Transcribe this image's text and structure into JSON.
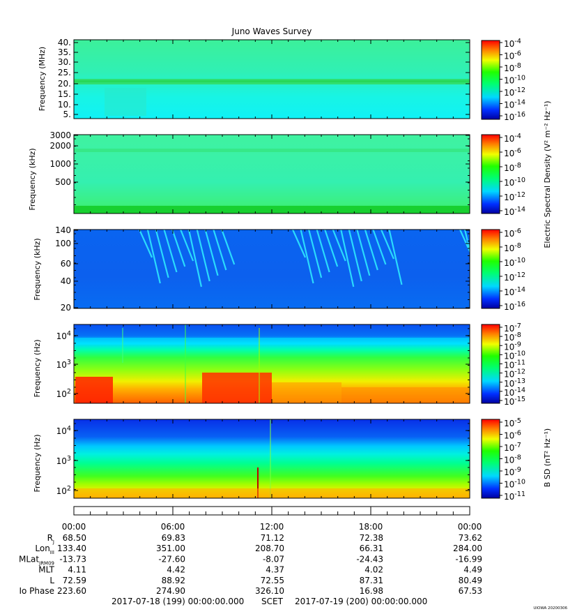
{
  "chart_data": {
    "type": "heatmap",
    "title": "Juno Waves Survey",
    "x_ticks": [
      "00:00",
      "06:00",
      "12:00",
      "18:00",
      "00:00"
    ],
    "panels": [
      {
        "id": "efield-mhz",
        "ylabel": "Frequency (MHz)",
        "y_ticks": [
          "40.",
          "35.",
          "30.",
          "25.",
          "20.",
          "15.",
          "10.",
          "5."
        ],
        "y_scale": "linear",
        "colorbar_ticks": [
          {
            "base": "10",
            "exp": "-4"
          },
          {
            "base": "10",
            "exp": "-6"
          },
          {
            "base": "10",
            "exp": "-8"
          },
          {
            "base": "10",
            "exp": "-10"
          },
          {
            "base": "10",
            "exp": "-12"
          },
          {
            "base": "10",
            "exp": "-14"
          },
          {
            "base": "10",
            "exp": "-16"
          }
        ]
      },
      {
        "id": "efield-khz-high",
        "ylabel": "Frequency (kHz)",
        "y_ticks": [
          "3000",
          "2000",
          "1000",
          "500"
        ],
        "y_scale": "log",
        "colorbar_ticks": [
          {
            "base": "10",
            "exp": "-4"
          },
          {
            "base": "10",
            "exp": "-6"
          },
          {
            "base": "10",
            "exp": "-8"
          },
          {
            "base": "10",
            "exp": "-10"
          },
          {
            "base": "10",
            "exp": "-12"
          },
          {
            "base": "10",
            "exp": "-14"
          }
        ]
      },
      {
        "id": "efield-khz-low",
        "ylabel": "Frequency (kHz)",
        "y_ticks": [
          "140",
          "100",
          "60",
          "40",
          "20"
        ],
        "y_scale": "log",
        "colorbar_ticks": [
          {
            "base": "10",
            "exp": "-6"
          },
          {
            "base": "10",
            "exp": "-8"
          },
          {
            "base": "10",
            "exp": "-10"
          },
          {
            "base": "10",
            "exp": "-12"
          },
          {
            "base": "10",
            "exp": "-14"
          },
          {
            "base": "10",
            "exp": "-16"
          }
        ]
      },
      {
        "id": "efield-hz",
        "ylabel": "Frequency (Hz)",
        "y_ticks": [
          {
            "base": "10",
            "exp": "4"
          },
          {
            "base": "10",
            "exp": "3"
          },
          {
            "base": "10",
            "exp": "2"
          }
        ],
        "y_scale": "log",
        "colorbar_ticks": [
          {
            "base": "10",
            "exp": "-7"
          },
          {
            "base": "10",
            "exp": "-8"
          },
          {
            "base": "10",
            "exp": "-9"
          },
          {
            "base": "10",
            "exp": "-10"
          },
          {
            "base": "10",
            "exp": "-11"
          },
          {
            "base": "10",
            "exp": "-12"
          },
          {
            "base": "10",
            "exp": "-13"
          },
          {
            "base": "10",
            "exp": "-14"
          },
          {
            "base": "10",
            "exp": "-15"
          }
        ]
      },
      {
        "id": "bfield-hz",
        "ylabel": "Frequency (Hz)",
        "y_ticks": [
          {
            "base": "10",
            "exp": "4"
          },
          {
            "base": "10",
            "exp": "3"
          },
          {
            "base": "10",
            "exp": "2"
          }
        ],
        "y_scale": "log",
        "colorbar_ticks": [
          {
            "base": "10",
            "exp": "-5"
          },
          {
            "base": "10",
            "exp": "-6"
          },
          {
            "base": "10",
            "exp": "-7"
          },
          {
            "base": "10",
            "exp": "-8"
          },
          {
            "base": "10",
            "exp": "-9"
          },
          {
            "base": "10",
            "exp": "-10"
          },
          {
            "base": "10",
            "exp": "-11"
          }
        ]
      }
    ],
    "colorbar_label_e": "Electric Spectral Density (V² m⁻² Hz⁻¹)",
    "colorbar_label_b": "B SD (nT² Hz⁻¹)",
    "ephemeris": {
      "rows": [
        {
          "label": "R",
          "sub": "J",
          "values": [
            "68.50",
            "69.83",
            "71.12",
            "72.38",
            "73.62"
          ]
        },
        {
          "label": "Lon",
          "sub": "III",
          "values": [
            "133.40",
            "351.00",
            "208.70",
            "66.31",
            "284.00"
          ]
        },
        {
          "label": "MLat",
          "sub": "JRM09",
          "values": [
            "-13.73",
            "-27.60",
            "-8.07",
            "-24.43",
            "-16.99"
          ]
        },
        {
          "label": "MLT",
          "sub": "",
          "values": [
            "4.11",
            "4.42",
            "4.37",
            "4.02",
            "4.49"
          ]
        },
        {
          "label": "L",
          "sub": "",
          "values": [
            "72.59",
            "88.92",
            "72.55",
            "87.31",
            "80.49"
          ]
        },
        {
          "label": "Io Phase",
          "sub": "",
          "values": [
            "223.60",
            "274.90",
            "326.10",
            "16.98",
            "67.53"
          ]
        }
      ]
    },
    "footer": {
      "start": "2017-07-18 (199) 00:00:00.000",
      "mid": "SCET",
      "end": "2017-07-19 (200) 00:00:00.000"
    },
    "credit": "UIOWA 20200306"
  }
}
